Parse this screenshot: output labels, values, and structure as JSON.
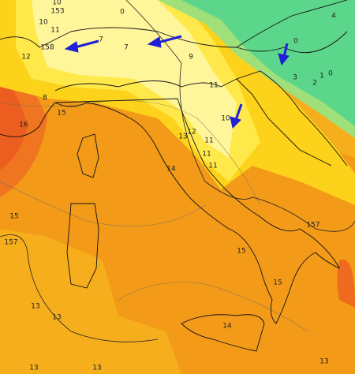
{
  "map": {
    "labels": [
      0,
      10,
      153,
      10,
      11,
      12,
      158,
      7,
      7,
      9,
      8,
      15,
      16,
      11,
      10,
      12,
      13,
      11,
      11,
      11,
      14,
      0,
      3,
      2,
      1,
      0,
      4,
      15,
      157,
      157,
      15,
      15,
      13,
      13,
      14,
      13,
      13,
      13
    ]
  }
}
